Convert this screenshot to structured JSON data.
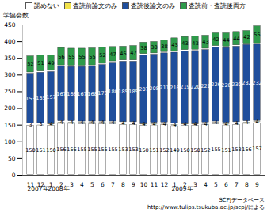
{
  "chart_data": {
    "type": "bar",
    "stacked": true,
    "data_labels": true,
    "legend": "top",
    "y_label": "学協会数",
    "categories": [
      "11",
      "12",
      "1",
      "2",
      "3",
      "4",
      "5",
      "6",
      "7",
      "8",
      "9",
      "10",
      "11",
      "12",
      "1",
      "2",
      "3",
      "4",
      "5",
      "6",
      "7",
      "8",
      "9"
    ],
    "x_group_labels": [
      {
        "label": "2007年",
        "index": 0
      },
      {
        "label": "2008年",
        "index": 2
      },
      {
        "label": "2009年",
        "index": 14
      }
    ],
    "ylim": [
      0,
      450
    ],
    "yticks": [
      0,
      50,
      100,
      150,
      200,
      250,
      300,
      350,
      400,
      450
    ],
    "series": [
      {
        "name": "認めない",
        "color": "#ffffff",
        "values": [
          150,
          151,
          150,
          156,
          156,
          155,
          155,
          155,
          155,
          153,
          153,
          150,
          151,
          152,
          149,
          150,
          150,
          152,
          155,
          151,
          153,
          156,
          157
        ]
      },
      {
        "name": "査読前論文のみ",
        "color": "#f2e24a",
        "values": [
          3,
          3,
          4,
          4,
          4,
          4,
          4,
          4,
          4,
          4,
          4,
          4,
          4,
          4,
          4,
          4,
          4,
          4,
          4,
          4,
          4,
          4,
          4
        ]
      },
      {
        "name": "査読後論文のみ",
        "color": "#1f4e9c",
        "values": [
          153,
          155,
          157,
          167,
          166,
          167,
          168,
          173,
          180,
          185,
          185,
          207,
          208,
          211,
          216,
          219,
          220,
          221,
          226,
          228,
          230,
          232,
          232
        ]
      },
      {
        "name": "査読前・査読後両方",
        "color": "#2e9a4a",
        "values": [
          52,
          51,
          49,
          56,
          55,
          55,
          55,
          52,
          47,
          45,
          47,
          38,
          38,
          38,
          43,
          43,
          43,
          43,
          42,
          44,
          44,
          42,
          55
        ]
      }
    ],
    "source": [
      "SCPJデータベース",
      "http://www.tulips.tsukuba.ac.jp/scpj/による"
    ]
  }
}
